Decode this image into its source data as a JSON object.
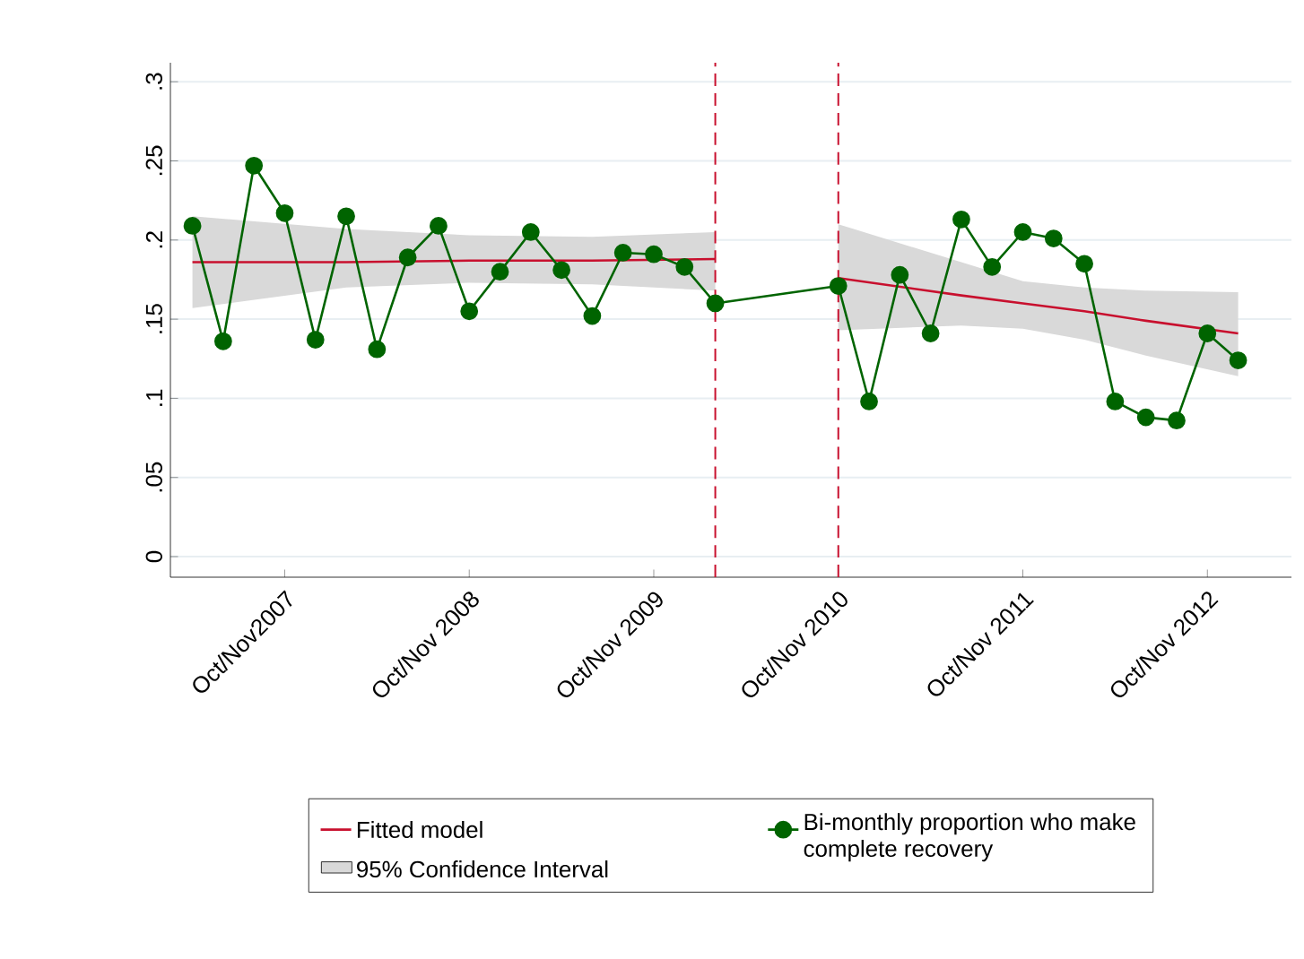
{
  "chart_data": {
    "type": "line",
    "xlim": [
      "2007-02-18",
      "2013-03-15"
    ],
    "ylim": [
      -0.013,
      0.312
    ],
    "xticks": [
      {
        "value": "2007-10",
        "label": "Oct/Nov2007"
      },
      {
        "value": "2008-10",
        "label": "Oct/Nov 2008"
      },
      {
        "value": "2009-10",
        "label": "Oct/Nov 2009"
      },
      {
        "value": "2010-10",
        "label": "Oct/Nov 2010"
      },
      {
        "value": "2011-10",
        "label": "Oct/Nov 2011"
      },
      {
        "value": "2012-10",
        "label": "Oct/Nov 2012"
      }
    ],
    "yticks": [
      0,
      {
        "value": 0.05,
        "label": ".05"
      },
      {
        "value": 0.1,
        "label": ".1"
      },
      {
        "value": 0.15,
        "label": ".15"
      },
      {
        "value": 0.2,
        "label": ".2"
      },
      {
        "value": 0.25,
        "label": ".25"
      },
      {
        "value": 0.3,
        "label": ".3"
      }
    ],
    "grid": "y",
    "legend": "bottom",
    "annotations": [
      "95% Confidence Interval"
    ],
    "ref_lines": [
      {
        "axis": "x",
        "value": "2010-02",
        "color": "#c8102e",
        "line_style": "dashed"
      },
      {
        "axis": "x",
        "value": "2010-10",
        "color": "#c8102e",
        "line_style": "dashed"
      }
    ],
    "series": [
      {
        "name": "Fitted model",
        "color": "#c8102e",
        "marker": "none",
        "x": [
          "2007-04",
          "2008-02",
          "2008-10",
          "2009-06",
          "2010-02",
          "2010-06",
          "2010-10",
          "2011-06",
          "2011-10",
          "2012-02",
          "2012-06",
          "2012-12"
        ],
        "values": [
          0.186,
          0.186,
          0.187,
          0.187,
          0.188,
          null,
          0.176,
          0.165,
          0.16,
          0.155,
          0.149,
          0.141
        ],
        "lower": [
          0.157,
          0.17,
          0.173,
          0.172,
          0.168,
          null,
          0.143,
          0.146,
          0.144,
          0.137,
          0.127,
          0.114
        ],
        "upper": [
          0.215,
          0.207,
          0.203,
          0.202,
          0.205,
          null,
          0.21,
          0.186,
          0.174,
          0.17,
          0.168,
          0.167
        ]
      },
      {
        "name": "Bi-monthly proportion who make complete recovery",
        "color": "#006400",
        "marker": "circle",
        "x": [
          "2007-04",
          "2007-06",
          "2007-08",
          "2007-10",
          "2007-12",
          "2008-02",
          "2008-04",
          "2008-06",
          "2008-08",
          "2008-10",
          "2008-12",
          "2009-02",
          "2009-04",
          "2009-06",
          "2009-08",
          "2009-10",
          "2009-12",
          "2010-02",
          "2010-10",
          "2010-12",
          "2011-02",
          "2011-04",
          "2011-06",
          "2011-08",
          "2011-10",
          "2011-12",
          "2012-02",
          "2012-04",
          "2012-06",
          "2012-08",
          "2012-10",
          "2012-12"
        ],
        "values": [
          0.209,
          0.136,
          0.247,
          0.217,
          0.137,
          0.215,
          0.131,
          0.189,
          0.209,
          0.155,
          0.18,
          0.205,
          0.181,
          0.152,
          0.192,
          0.191,
          0.183,
          0.16,
          0.171,
          0.098,
          0.178,
          0.141,
          0.213,
          0.183,
          0.205,
          0.201,
          0.185,
          0.098,
          0.088,
          0.086,
          0.141,
          0.124
        ]
      }
    ]
  }
}
